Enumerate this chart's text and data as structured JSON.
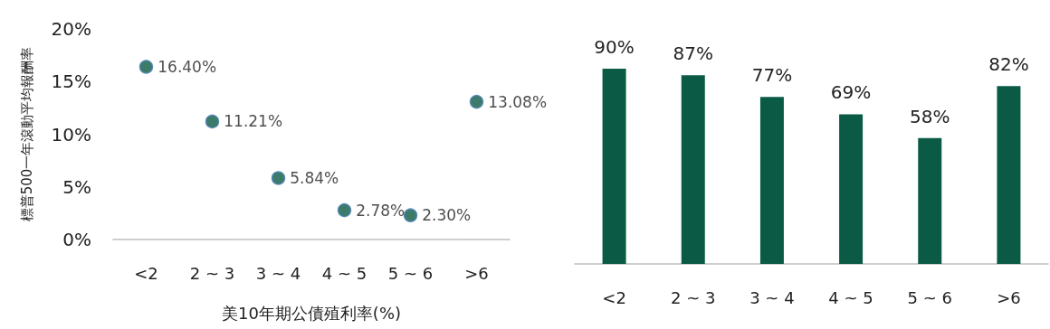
{
  "chart_data": [
    {
      "type": "scatter",
      "xlabel": "美10年期公債殖利率(%)",
      "ylabel": "標普500一年滾動平均報酬率",
      "categories": [
        "<2",
        "2 ~ 3",
        "3 ~ 4",
        "4 ~ 5",
        "5 ~ 6",
        ">6"
      ],
      "series": [
        {
          "color": "#0b5a45",
          "values": [
            16.4,
            11.21,
            5.84,
            2.78,
            2.3,
            13.08
          ],
          "value_labels": [
            "16.40%",
            "11.21%",
            "5.84%",
            "2.78%",
            "2.30%",
            "13.08%"
          ]
        }
      ],
      "ylim": [
        0,
        20
      ],
      "yticks": [
        {
          "value": 0,
          "label": "0%"
        },
        {
          "value": 5,
          "label": "5%"
        },
        {
          "value": 10,
          "label": "10%"
        },
        {
          "value": 15,
          "label": "15%"
        },
        {
          "value": 20,
          "label": "20%"
        }
      ],
      "marker": "circle",
      "grid": false
    },
    {
      "type": "bar",
      "categories": [
        "<2",
        "2 ~ 3",
        "3 ~ 4",
        "4 ~ 5",
        "5 ~ 6",
        ">6"
      ],
      "series": [
        {
          "color": "#0b5a45",
          "values": [
            90,
            87,
            77,
            69,
            58,
            82
          ],
          "value_labels": [
            "90%",
            "87%",
            "77%",
            "69%",
            "58%",
            "82%"
          ]
        }
      ],
      "tick_labels": "x",
      "grid": false
    }
  ]
}
